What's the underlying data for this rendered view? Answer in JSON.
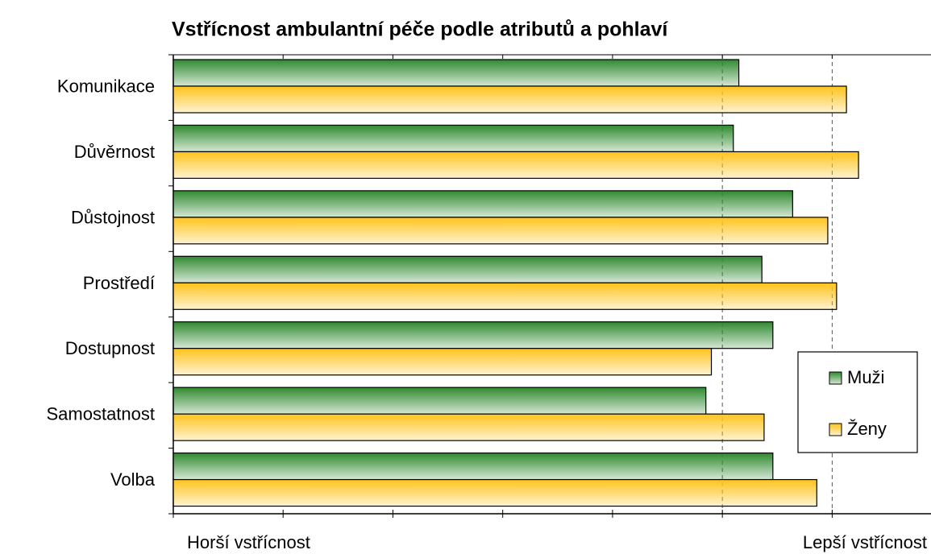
{
  "chart_data": {
    "type": "hbar",
    "title": "Vstřícnost ambulantní péče podle atributů a pohlaví",
    "categories": [
      "Komunikace",
      "Důvěrnost",
      "Důstojnost",
      "Prostředí",
      "Dostupnost",
      "Samostatnost",
      "Volba"
    ],
    "series": [
      {
        "name": "Muži",
        "color": "#2f8a2f",
        "values": [
          5.15,
          5.1,
          5.64,
          5.36,
          5.46,
          4.85,
          5.46
        ]
      },
      {
        "name": "Ženy",
        "color": "#ffc31a",
        "values": [
          6.13,
          6.24,
          5.96,
          6.04,
          4.9,
          5.38,
          5.86
        ]
      }
    ],
    "xlim": [
      0,
      6.9
    ],
    "xticks": [
      0,
      1,
      2,
      3,
      4,
      5,
      6
    ],
    "reference_lines": [
      5,
      6
    ],
    "x_label_low": "Horší vstřícnost",
    "x_label_high": "Lepší vstřícnost",
    "legend": "right"
  }
}
